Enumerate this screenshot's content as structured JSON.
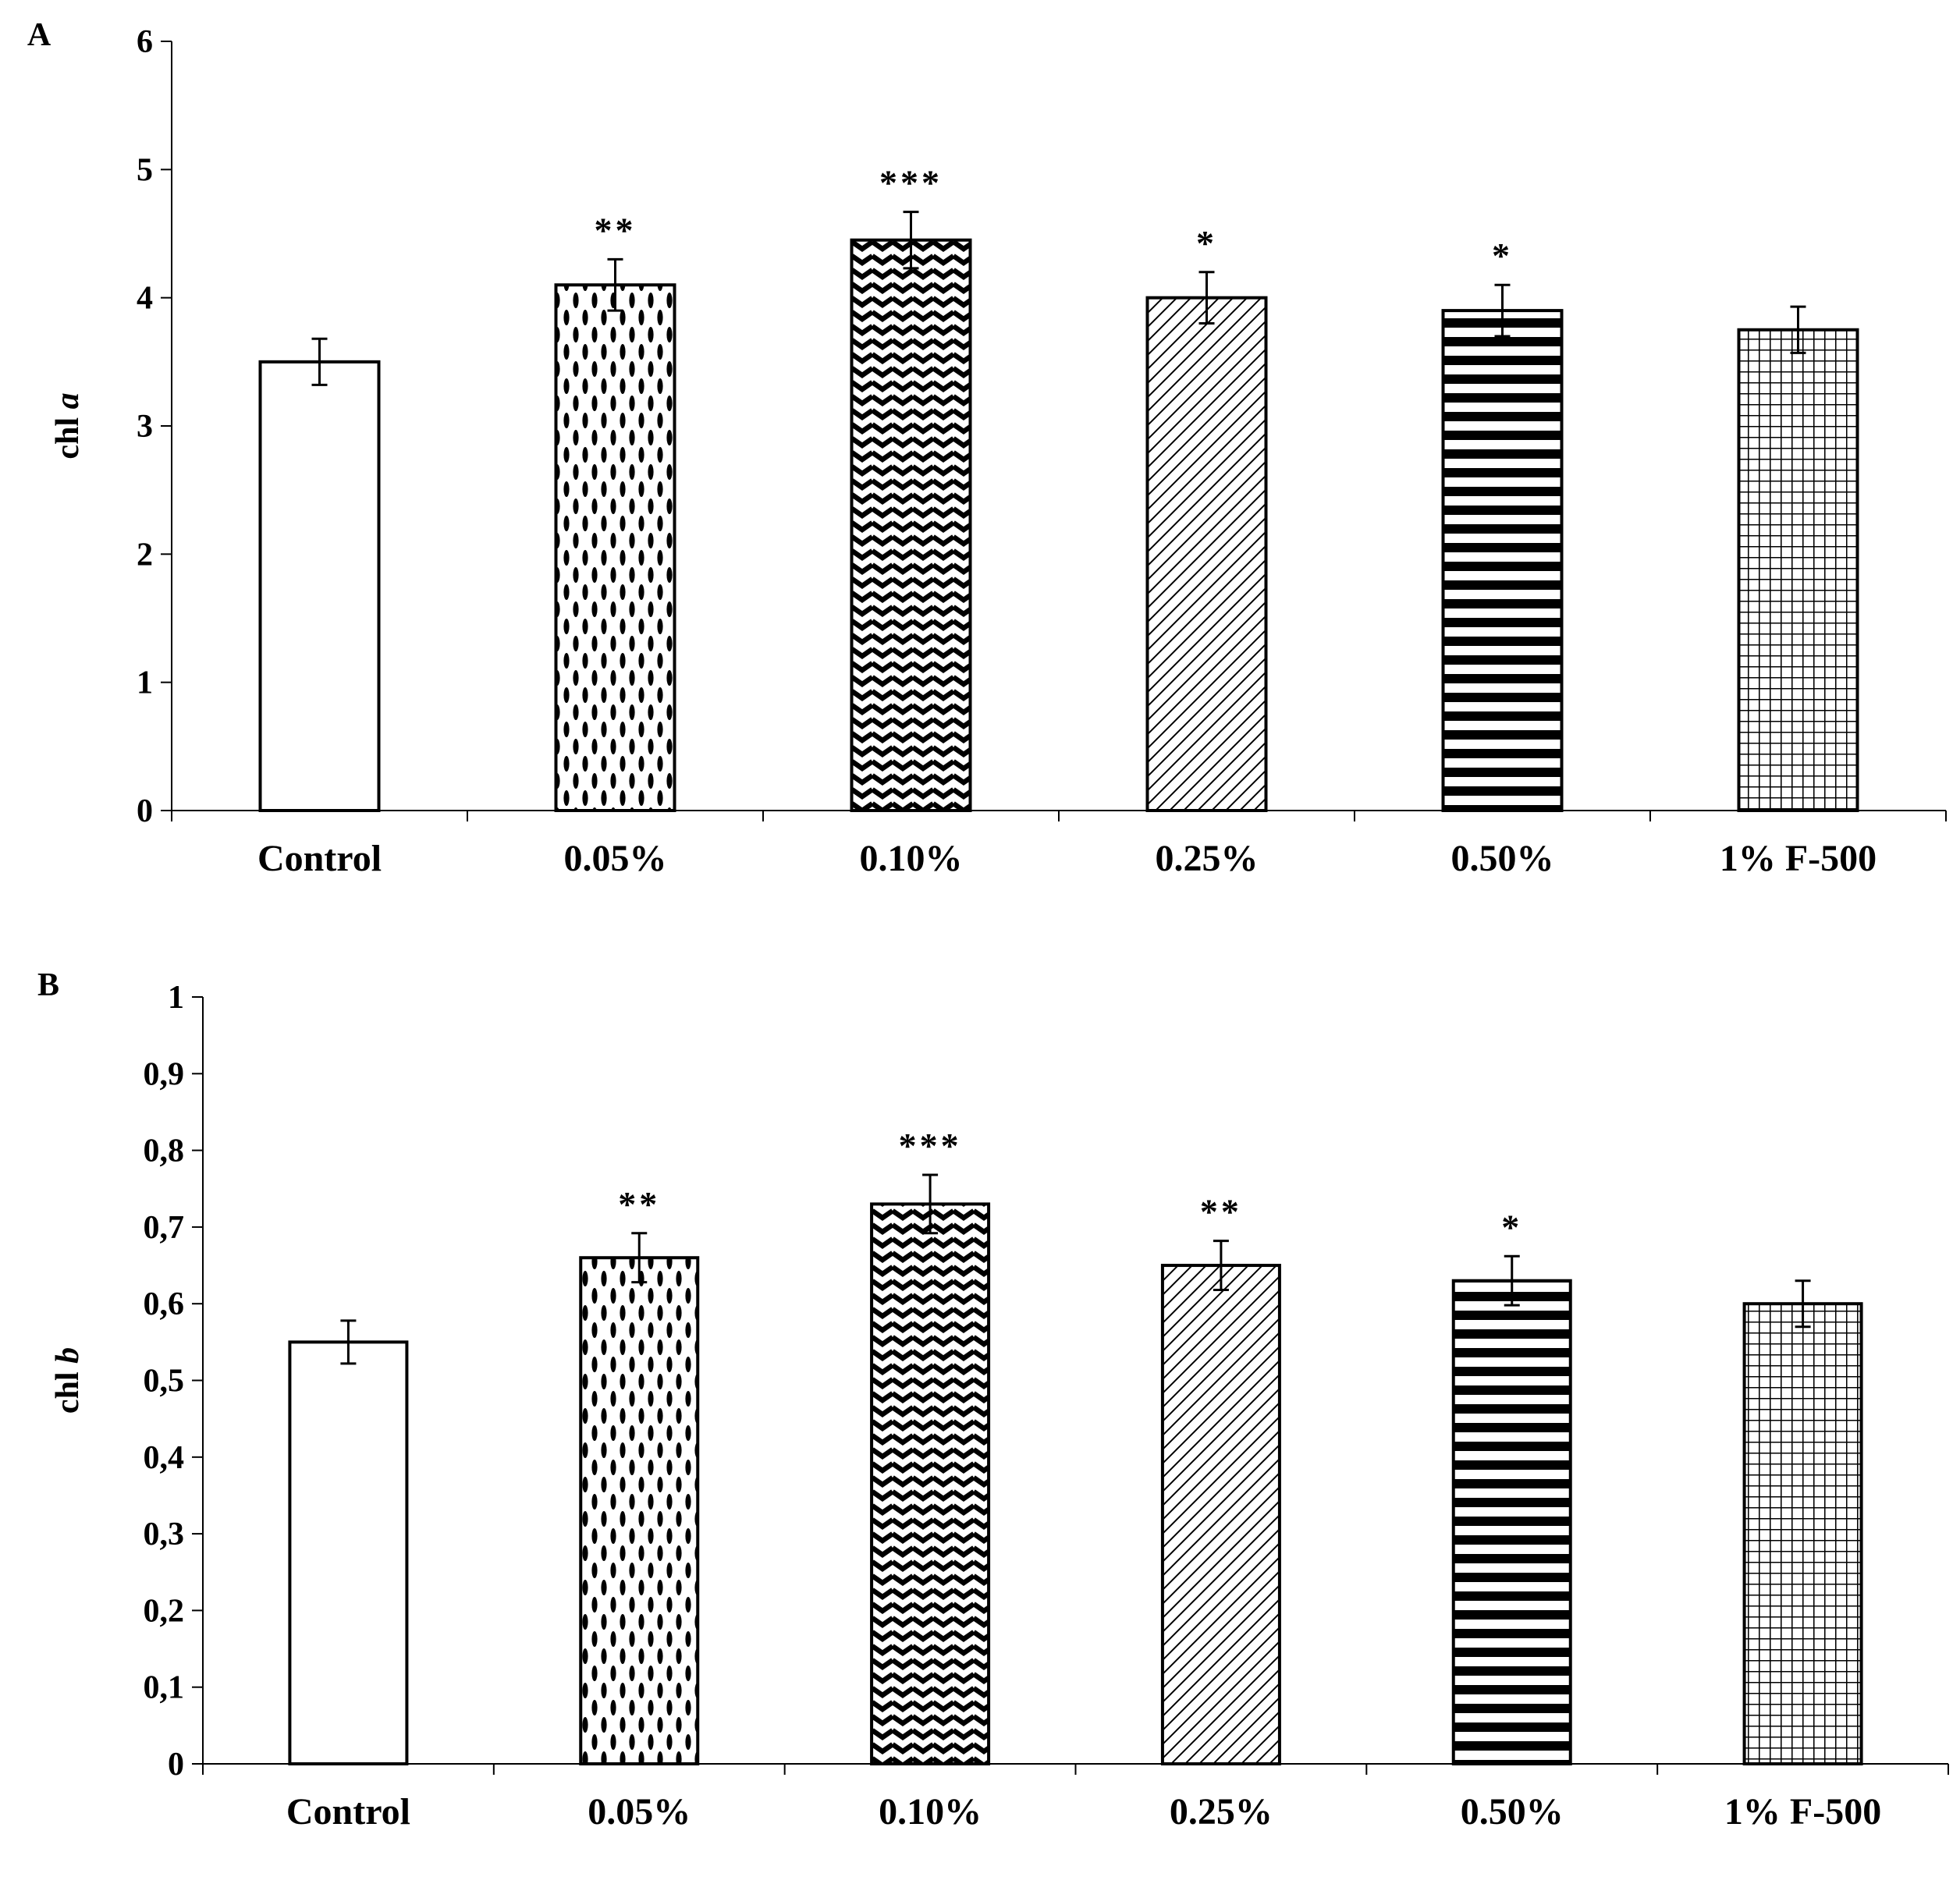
{
  "chart_data": [
    {
      "panel_label": "A",
      "type": "bar",
      "ylabel_main": "chl ",
      "ylabel_italic": "a",
      "ylim": [
        0,
        6
      ],
      "yticks": [
        "0",
        "1",
        "2",
        "3",
        "4",
        "5",
        "6"
      ],
      "categories": [
        "Control",
        "0.05%",
        "0.10%",
        "0.25%",
        "0.50%",
        "1% F-500"
      ],
      "values": [
        3.5,
        4.1,
        4.45,
        4.0,
        3.9,
        3.75
      ],
      "errors": [
        0.18,
        0.2,
        0.22,
        0.2,
        0.2,
        0.18
      ],
      "significance": [
        "",
        "**",
        "***",
        "*",
        "*",
        ""
      ],
      "patterns": [
        "none",
        "ovals",
        "zigzag",
        "diagonal",
        "hstripes",
        "grid"
      ],
      "grid": false,
      "legend": "none"
    },
    {
      "panel_label": "B",
      "type": "bar",
      "ylabel_main": "chl ",
      "ylabel_italic": "b",
      "ylim": [
        0,
        1
      ],
      "yticks": [
        "0",
        "0,1",
        "0,2",
        "0,3",
        "0,4",
        "0,5",
        "0,6",
        "0,7",
        "0,8",
        "0,9",
        "1"
      ],
      "categories": [
        "Control",
        "0.05%",
        "0.10%",
        "0.25%",
        "0.50%",
        "1% F-500"
      ],
      "values": [
        0.55,
        0.66,
        0.73,
        0.65,
        0.63,
        0.6
      ],
      "errors": [
        0.028,
        0.032,
        0.038,
        0.032,
        0.032,
        0.03
      ],
      "significance": [
        "",
        "**",
        "***",
        "**",
        "*",
        ""
      ],
      "patterns": [
        "none",
        "ovals",
        "zigzag",
        "diagonal",
        "hstripes",
        "grid"
      ],
      "grid": false,
      "legend": "none"
    }
  ]
}
